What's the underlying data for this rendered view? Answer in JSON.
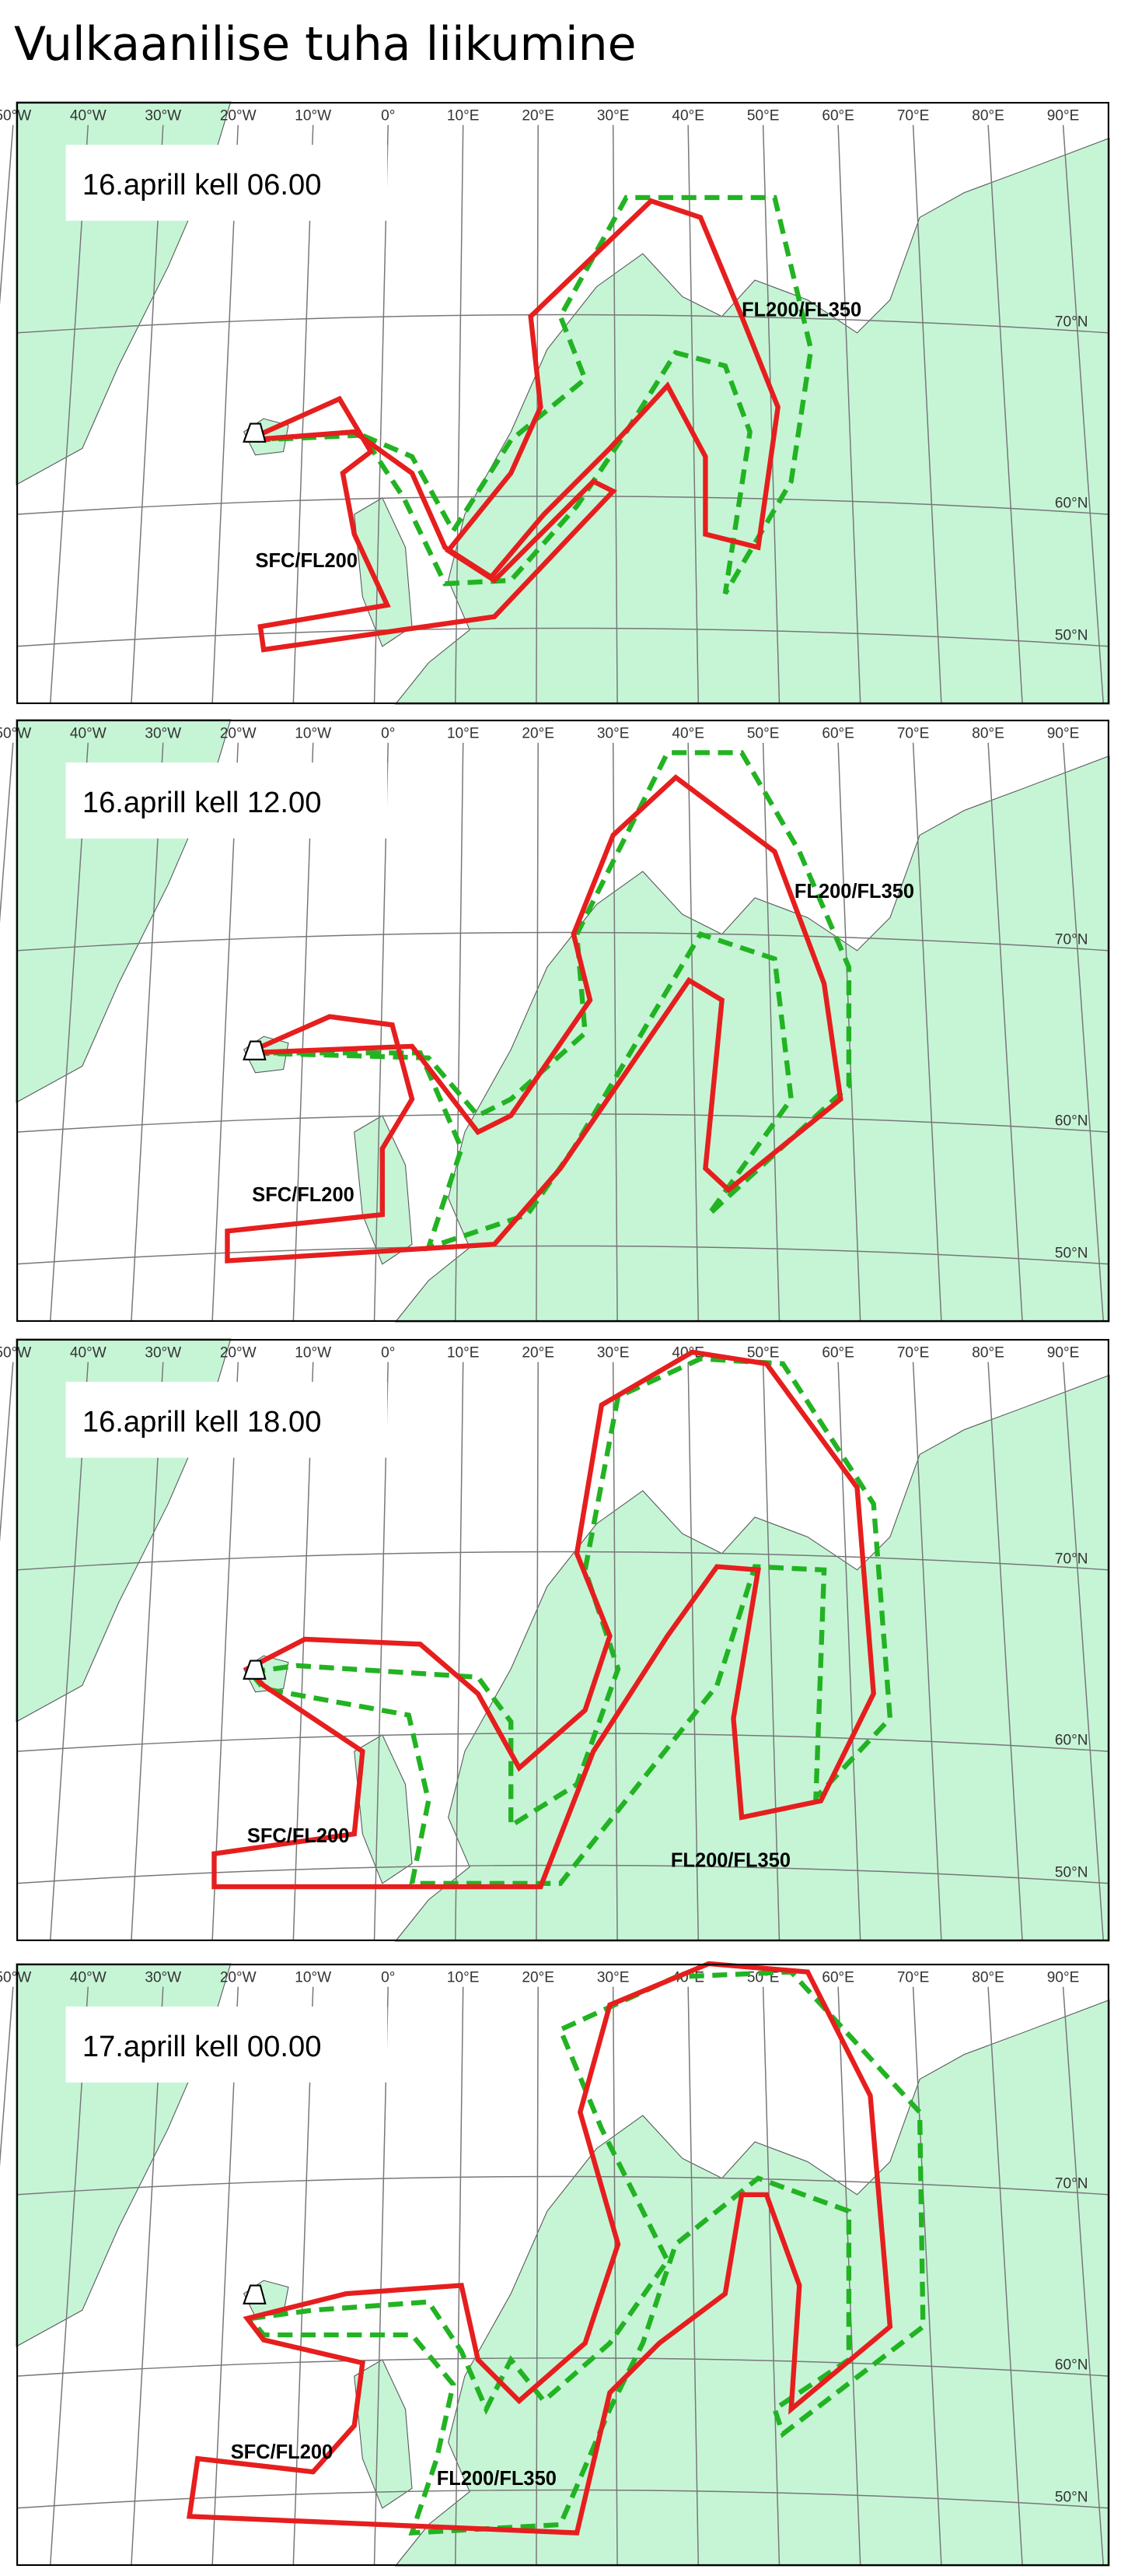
{
  "title": "Vulkaanilise tuha liikumine",
  "lon_labels": [
    "50°W",
    "40°W",
    "30°W",
    "20°W",
    "10°W",
    "0°",
    "10°E",
    "20°E",
    "30°E",
    "40°E",
    "50°E",
    "60°E",
    "70°E",
    "80°E",
    "90°E"
  ],
  "lat_labels": [
    "70°N",
    "60°N",
    "50°N"
  ],
  "panels": [
    {
      "time": "16.aprill kell 06.00",
      "plume_labels": [
        "SFC/FL200",
        "FL200/FL350"
      ]
    },
    {
      "time": "16.aprill kell 12.00",
      "plume_labels": [
        "SFC/FL200",
        "FL200/FL350"
      ]
    },
    {
      "time": "16.aprill kell 18.00",
      "plume_labels": [
        "SFC/FL200",
        "FL200/FL350"
      ]
    },
    {
      "time": "17.aprill kell 00.00",
      "plume_labels": [
        "SFC/FL200",
        "FL200/FL350"
      ]
    }
  ]
}
